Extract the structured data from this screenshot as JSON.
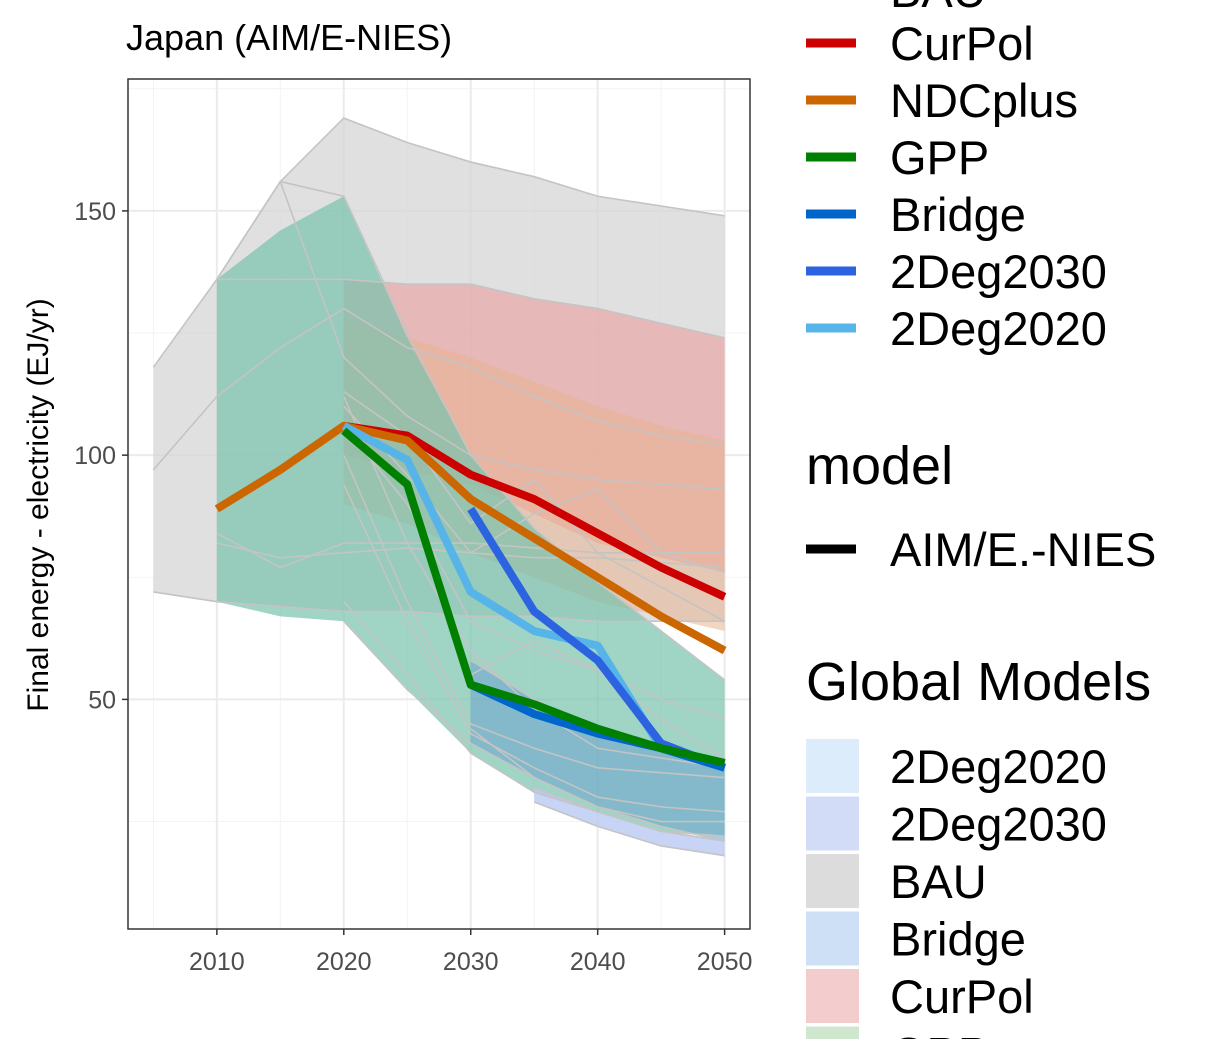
{
  "chart_data": {
    "type": "line",
    "title": "Japan (AIM/E-NIES)",
    "xlabel": "",
    "ylabel": "Final energy - electricity (EJ/yr)",
    "xlim": [
      2003,
      2052
    ],
    "ylim": [
      3,
      177
    ],
    "x_ticks": [
      2010,
      2020,
      2030,
      2040,
      2050
    ],
    "y_ticks": [
      50,
      100,
      150
    ],
    "grid": true,
    "legend_position": "right",
    "colors": {
      "background_line": "#c4c4c4",
      "panel_border": "#333333",
      "grid_major": "#ebebeb"
    },
    "ribbons": [
      {
        "name": "BAU",
        "fill": "#d6d6d6",
        "opacity": 0.75,
        "x": [
          2005,
          2010,
          2015,
          2020,
          2025,
          2030,
          2035,
          2040,
          2045,
          2050
        ],
        "upper": [
          118,
          136,
          156,
          169,
          164,
          160,
          157,
          153,
          151,
          149
        ],
        "lower": [
          72,
          70,
          69,
          68,
          68,
          67,
          67,
          66,
          66,
          66
        ]
      },
      {
        "name": "CurPol",
        "fill": "#e8a7a7",
        "opacity": 0.7,
        "x": [
          2020,
          2025,
          2030,
          2035,
          2040,
          2045,
          2050
        ],
        "upper": [
          136,
          135,
          135,
          132,
          130,
          127,
          124
        ],
        "lower": [
          100,
          97,
          94,
          88,
          82,
          79,
          76
        ]
      },
      {
        "name": "NDCplus",
        "fill": "#e8b38f",
        "opacity": 0.55,
        "x": [
          2020,
          2025,
          2030,
          2035,
          2040,
          2045,
          2050
        ],
        "upper": [
          128,
          124,
          120,
          115,
          110,
          106,
          103
        ],
        "lower": [
          90,
          86,
          80,
          75,
          70,
          67,
          64
        ]
      },
      {
        "name": "GPP",
        "fill": "#77c2ad",
        "opacity": 0.7,
        "x": [
          2010,
          2015,
          2020,
          2025,
          2030,
          2035,
          2040,
          2045,
          2050
        ],
        "upper": [
          136,
          146,
          153,
          124,
          100,
          85,
          74,
          64,
          54
        ],
        "lower": [
          70,
          67,
          66,
          52,
          39,
          31,
          27,
          23,
          22
        ]
      },
      {
        "name": "Bridge",
        "fill": "#6fa7cf",
        "opacity": 0.6,
        "x": [
          2030,
          2035,
          2040,
          2045,
          2050
        ],
        "upper": [
          58,
          50,
          44,
          40,
          37
        ],
        "lower": [
          41,
          34,
          28,
          24,
          21
        ]
      },
      {
        "name": "2Deg2030",
        "fill": "#b9c9f2",
        "opacity": 0.8,
        "x": [
          2035,
          2040,
          2045,
          2050
        ],
        "upper": [
          32,
          27,
          23,
          21
        ],
        "lower": [
          29,
          24,
          20,
          18
        ]
      }
    ],
    "background_lines": [
      [
        [
          2005,
          118
        ],
        [
          2010,
          136
        ],
        [
          2015,
          156
        ],
        [
          2020,
          169
        ],
        [
          2025,
          164
        ],
        [
          2030,
          160
        ],
        [
          2035,
          157
        ],
        [
          2040,
          153
        ],
        [
          2045,
          151
        ],
        [
          2050,
          149
        ]
      ],
      [
        [
          2010,
          136
        ],
        [
          2015,
          156
        ],
        [
          2020,
          153
        ],
        [
          2025,
          125
        ],
        [
          2030,
          100
        ],
        [
          2035,
          85
        ],
        [
          2040,
          74
        ],
        [
          2045,
          64
        ],
        [
          2050,
          54
        ]
      ],
      [
        [
          2010,
          136
        ],
        [
          2020,
          136
        ],
        [
          2025,
          135
        ],
        [
          2030,
          135
        ],
        [
          2035,
          132
        ],
        [
          2040,
          130
        ],
        [
          2045,
          127
        ],
        [
          2050,
          124
        ]
      ],
      [
        [
          2005,
          97
        ],
        [
          2010,
          112
        ],
        [
          2015,
          122
        ],
        [
          2020,
          130
        ],
        [
          2025,
          122
        ],
        [
          2030,
          118
        ],
        [
          2035,
          112
        ],
        [
          2040,
          107
        ],
        [
          2045,
          104
        ],
        [
          2050,
          102
        ]
      ],
      [
        [
          2015,
          156
        ],
        [
          2020,
          120
        ],
        [
          2025,
          108
        ],
        [
          2030,
          100
        ],
        [
          2035,
          97
        ],
        [
          2040,
          95
        ],
        [
          2045,
          94
        ],
        [
          2050,
          93
        ]
      ],
      [
        [
          2005,
          72
        ],
        [
          2010,
          70
        ],
        [
          2015,
          69
        ],
        [
          2020,
          68
        ],
        [
          2025,
          68
        ],
        [
          2030,
          67
        ],
        [
          2035,
          67
        ],
        [
          2040,
          66
        ],
        [
          2045,
          66
        ],
        [
          2050,
          66
        ]
      ],
      [
        [
          2010,
          84
        ],
        [
          2015,
          77
        ],
        [
          2020,
          82
        ],
        [
          2025,
          82
        ],
        [
          2030,
          82
        ],
        [
          2035,
          81
        ],
        [
          2040,
          80
        ],
        [
          2045,
          80
        ],
        [
          2050,
          80
        ]
      ],
      [
        [
          2010,
          82
        ],
        [
          2015,
          79
        ],
        [
          2020,
          80
        ],
        [
          2025,
          81
        ],
        [
          2030,
          80
        ],
        [
          2035,
          79
        ],
        [
          2040,
          79
        ],
        [
          2045,
          78
        ],
        [
          2050,
          77
        ]
      ],
      [
        [
          2020,
          113
        ],
        [
          2025,
          104
        ],
        [
          2030,
          86
        ],
        [
          2035,
          95
        ],
        [
          2040,
          80
        ],
        [
          2045,
          73
        ],
        [
          2050,
          66
        ]
      ],
      [
        [
          2020,
          110
        ],
        [
          2025,
          96
        ],
        [
          2030,
          80
        ],
        [
          2035,
          88
        ],
        [
          2040,
          93
        ],
        [
          2045,
          80
        ],
        [
          2050,
          76
        ]
      ],
      [
        [
          2020,
          106
        ],
        [
          2025,
          90
        ],
        [
          2030,
          66
        ],
        [
          2035,
          60
        ],
        [
          2040,
          56
        ],
        [
          2045,
          50
        ],
        [
          2050,
          46
        ]
      ],
      [
        [
          2020,
          112
        ],
        [
          2025,
          82
        ],
        [
          2030,
          60
        ],
        [
          2035,
          48
        ],
        [
          2040,
          40
        ],
        [
          2045,
          38
        ],
        [
          2050,
          36
        ]
      ],
      [
        [
          2020,
          100
        ],
        [
          2025,
          70
        ],
        [
          2030,
          45
        ],
        [
          2035,
          40
        ],
        [
          2040,
          36
        ],
        [
          2045,
          35
        ],
        [
          2050,
          34
        ]
      ],
      [
        [
          2020,
          94
        ],
        [
          2025,
          66
        ],
        [
          2030,
          43
        ],
        [
          2035,
          36
        ],
        [
          2040,
          30
        ],
        [
          2045,
          28
        ],
        [
          2050,
          27
        ]
      ],
      [
        [
          2020,
          70
        ],
        [
          2025,
          55
        ],
        [
          2030,
          39
        ],
        [
          2035,
          31
        ],
        [
          2040,
          27
        ],
        [
          2045,
          23
        ],
        [
          2050,
          22
        ]
      ],
      [
        [
          2020,
          66
        ],
        [
          2025,
          52
        ],
        [
          2030,
          41
        ],
        [
          2035,
          34
        ],
        [
          2040,
          28
        ],
        [
          2045,
          24
        ],
        [
          2050,
          21
        ]
      ],
      [
        [
          2030,
          58
        ],
        [
          2035,
          50
        ],
        [
          2040,
          44
        ],
        [
          2045,
          40
        ],
        [
          2050,
          37
        ]
      ],
      [
        [
          2030,
          55
        ],
        [
          2035,
          62
        ],
        [
          2040,
          56
        ],
        [
          2045,
          46
        ],
        [
          2050,
          38
        ]
      ],
      [
        [
          2035,
          32
        ],
        [
          2040,
          27
        ],
        [
          2045,
          23
        ],
        [
          2050,
          21
        ]
      ],
      [
        [
          2035,
          29
        ],
        [
          2040,
          24
        ],
        [
          2045,
          20
        ],
        [
          2050,
          18
        ]
      ],
      [
        [
          2030,
          44
        ],
        [
          2035,
          34
        ],
        [
          2040,
          28
        ],
        [
          2045,
          25
        ],
        [
          2050,
          25
        ]
      ]
    ],
    "series": [
      {
        "name": "CurPol",
        "color": "#cc0000",
        "x": [
          2020,
          2025,
          2030,
          2035,
          2040,
          2045,
          2050
        ],
        "values": [
          106,
          104,
          96,
          91,
          84,
          77,
          71
        ]
      },
      {
        "name": "NDCplus",
        "color": "#cc6600",
        "x": [
          2010,
          2015,
          2020,
          2025,
          2030,
          2035,
          2040,
          2045,
          2050
        ],
        "values": [
          89,
          97,
          106,
          103,
          91,
          83,
          75,
          67,
          60
        ]
      },
      {
        "name": "2Deg2020",
        "color": "#56b4e9",
        "x": [
          2020,
          2025,
          2030,
          2035,
          2040,
          2045,
          2050
        ],
        "values": [
          106,
          99,
          72,
          64,
          61,
          40,
          36
        ]
      },
      {
        "name": "2Deg2030",
        "color": "#2b63e0",
        "x": [
          2030,
          2035,
          2040,
          2045,
          2050
        ],
        "values": [
          89,
          68,
          58,
          41,
          36
        ]
      },
      {
        "name": "Bridge",
        "color": "#0066cc",
        "x": [
          2030,
          2035,
          2040,
          2045,
          2050
        ],
        "values": [
          53,
          47,
          43,
          40,
          36
        ]
      },
      {
        "name": "GPP",
        "color": "#008000",
        "x": [
          2020,
          2025,
          2030,
          2035,
          2040,
          2045,
          2050
        ],
        "values": [
          105,
          94,
          53,
          49,
          44,
          40,
          37
        ]
      }
    ],
    "legend": {
      "scenario_partial_label": "BAU",
      "scenario_items": [
        {
          "label": "CurPol",
          "color": "#cc0000"
        },
        {
          "label": "NDCplus",
          "color": "#cc6600"
        },
        {
          "label": "GPP",
          "color": "#008000"
        },
        {
          "label": "Bridge",
          "color": "#0066cc"
        },
        {
          "label": "2Deg2030",
          "color": "#2b63e0"
        },
        {
          "label": "2Deg2020",
          "color": "#56b4e9"
        }
      ],
      "model_title": "model",
      "model_items": [
        {
          "label": "AIM/E.-NIES",
          "color": "#000000"
        }
      ],
      "global_title": "Global Models",
      "global_items": [
        {
          "label": "2Deg2020",
          "color": "#dcecfa"
        },
        {
          "label": "2Deg2030",
          "color": "#d3dcf7"
        },
        {
          "label": "BAU",
          "color": "#dcdcdc"
        },
        {
          "label": "Bridge",
          "color": "#cde0f5"
        },
        {
          "label": "CurPol",
          "color": "#f3cdcd"
        },
        {
          "label": "GPP",
          "color": "#cfe6cf"
        }
      ]
    }
  }
}
